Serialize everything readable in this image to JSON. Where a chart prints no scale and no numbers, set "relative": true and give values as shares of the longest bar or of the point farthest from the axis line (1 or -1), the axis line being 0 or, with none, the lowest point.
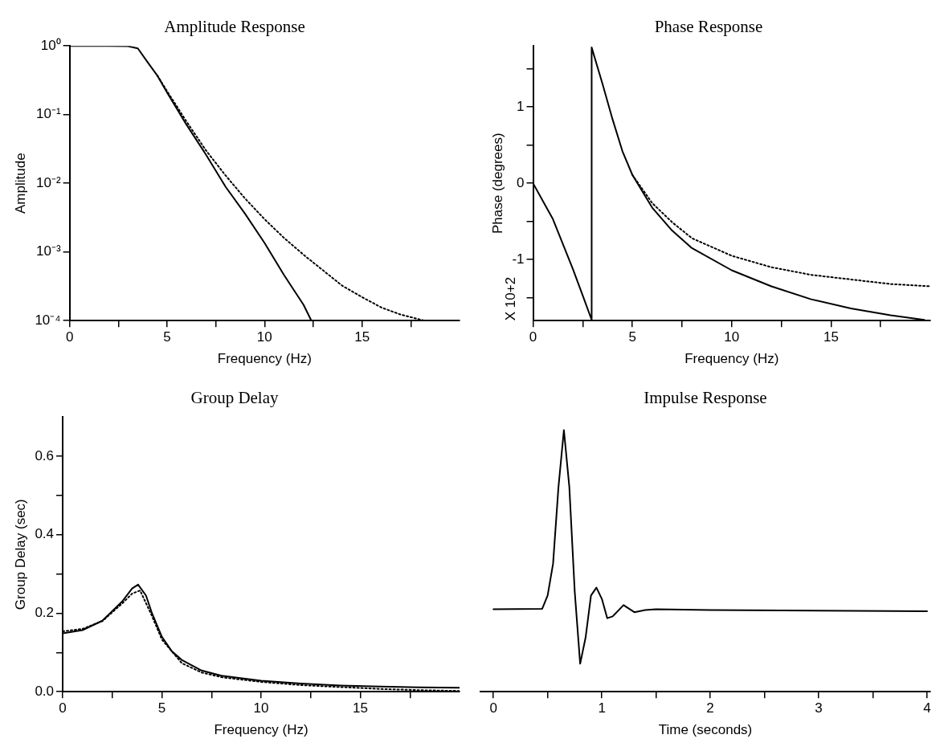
{
  "chart_data": [
    {
      "type": "line",
      "title": "Amplitude Response",
      "xlabel": "Frequency (Hz)",
      "ylabel": "Amplitude",
      "log": "y",
      "xlim": [
        0,
        20
      ],
      "xticks": [
        0,
        {
          "value": 2.5,
          "label": null
        },
        5,
        {
          "value": 7.5,
          "label": null
        },
        10,
        {
          "value": 12.5,
          "label": null
        },
        15,
        {
          "value": 17.5,
          "label": null
        }
      ],
      "ylim": [
        0.0001,
        1
      ],
      "yticks": [
        {
          "value": 0.0001,
          "label": "10⁻⁴"
        },
        {
          "value": 0.001,
          "label": "10⁻³"
        },
        {
          "value": 0.01,
          "label": "10⁻²"
        },
        {
          "value": 0.1,
          "label": "10⁻¹"
        },
        {
          "value": 1,
          "label": "10⁰"
        }
      ],
      "series": [
        {
          "color": "#000000",
          "line_style": "solid",
          "x": [
            0,
            2,
            3,
            3.5,
            4,
            4.5,
            5,
            6,
            7,
            8,
            9,
            10,
            11,
            12,
            12.4
          ],
          "values": [
            1,
            1,
            0.99,
            0.92,
            0.58,
            0.37,
            0.21,
            0.071,
            0.026,
            0.0089,
            0.0036,
            0.00135,
            0.00046,
            0.00017,
            0.0001
          ]
        },
        {
          "color": "#000000",
          "line_style": "dotted",
          "x": [
            4.5,
            5,
            6,
            7,
            8,
            9,
            10,
            11,
            12,
            13,
            14,
            15,
            16,
            17,
            18.2
          ],
          "values": [
            0.37,
            0.22,
            0.079,
            0.03,
            0.013,
            0.006,
            0.003,
            0.0016,
            0.00091,
            0.00054,
            0.00032,
            0.00022,
            0.000155,
            0.000122,
            0.0001
          ]
        }
      ]
    },
    {
      "type": "line",
      "title": "Phase Response",
      "xlabel": "Frequency (Hz)",
      "ylabel": "Phase (degrees)",
      "annotations": [
        "X 10+2"
      ],
      "xlim": [
        0,
        20
      ],
      "xticks": [
        0,
        {
          "value": 2.5,
          "label": null
        },
        5,
        {
          "value": 7.5,
          "label": null
        },
        10,
        {
          "value": 12.5,
          "label": null
        },
        15,
        {
          "value": 17.5,
          "label": null
        }
      ],
      "ylim": [
        -1.8,
        1.8
      ],
      "yticks": [
        {
          "value": -1.5,
          "label": null
        },
        -1,
        {
          "value": -0.5,
          "label": null
        },
        0,
        {
          "value": 0.5,
          "label": null
        },
        1,
        {
          "value": 1.5,
          "label": null
        }
      ],
      "series": [
        {
          "color": "#000000",
          "line_style": "solid",
          "x": [
            0,
            1,
            2,
            2.5,
            2.95,
            2.95,
            3.5,
            4,
            4.5,
            5,
            6,
            7,
            8,
            10,
            12,
            14,
            16,
            18,
            19.7
          ],
          "values": [
            0,
            -0.47,
            -1.12,
            -1.47,
            -1.79,
            1.78,
            1.3,
            0.84,
            0.42,
            0.11,
            -0.32,
            -0.62,
            -0.85,
            -1.14,
            -1.35,
            -1.52,
            -1.64,
            -1.73,
            -1.79
          ]
        },
        {
          "color": "#000000",
          "line_style": "dotted",
          "x": [
            5,
            6,
            7,
            8,
            10,
            12,
            14,
            16,
            18,
            20
          ],
          "values": [
            0.11,
            -0.26,
            -0.51,
            -0.72,
            -0.95,
            -1.1,
            -1.2,
            -1.26,
            -1.32,
            -1.35
          ]
        }
      ]
    },
    {
      "type": "line",
      "title": "Group Delay",
      "xlabel": "Frequency (Hz)",
      "ylabel": "Group Delay (sec)",
      "xlim": [
        0,
        20
      ],
      "xticks": [
        0,
        {
          "value": 2.5,
          "label": null
        },
        5,
        {
          "value": 7.5,
          "label": null
        },
        10,
        {
          "value": 12.5,
          "label": null
        },
        15,
        {
          "value": 17.5,
          "label": null
        }
      ],
      "ylim": [
        0,
        0.7
      ],
      "yticks": [
        {
          "value": 0,
          "label": "0.0"
        },
        {
          "value": 0.1,
          "label": null
        },
        0.2,
        {
          "value": 0.3,
          "label": null
        },
        0.4,
        {
          "value": 0.5,
          "label": null
        },
        0.6
      ],
      "series": [
        {
          "color": "#000000",
          "line_style": "solid",
          "x": [
            0,
            1,
            2,
            3,
            3.5,
            3.8,
            4.2,
            4.5,
            5,
            5.5,
            6,
            7,
            8,
            10,
            12,
            14,
            16,
            18,
            20
          ],
          "values": [
            0.149,
            0.157,
            0.181,
            0.23,
            0.263,
            0.273,
            0.245,
            0.2,
            0.14,
            0.103,
            0.081,
            0.054,
            0.041,
            0.028,
            0.021,
            0.016,
            0.013,
            0.011,
            0.01
          ]
        },
        {
          "color": "#000000",
          "line_style": "dotted",
          "x": [
            0,
            1,
            2,
            3,
            3.5,
            3.9,
            4.5,
            5,
            6,
            7,
            8,
            10,
            12,
            14,
            16,
            18,
            20
          ],
          "values": [
            0.154,
            0.16,
            0.18,
            0.225,
            0.25,
            0.258,
            0.193,
            0.133,
            0.073,
            0.049,
            0.037,
            0.025,
            0.017,
            0.012,
            0.007,
            0.004,
            0.002
          ]
        }
      ]
    },
    {
      "type": "line",
      "title": "Impulse Response",
      "xlabel": "Time (seconds)",
      "relative": true,
      "xlim": [
        -0.12,
        4.03
      ],
      "xticks": [
        0,
        {
          "value": 0.5,
          "label": null
        },
        1,
        {
          "value": 1.5,
          "label": null
        },
        2,
        {
          "value": 2.5,
          "label": null
        },
        3,
        {
          "value": 3.5,
          "label": null
        },
        4
      ],
      "series": [
        {
          "color": "#000000",
          "line_style": "solid",
          "x": [
            0,
            0.45,
            0.5,
            0.55,
            0.6,
            0.65,
            0.7,
            0.75,
            0.8,
            0.85,
            0.9,
            0.95,
            1,
            1.05,
            1.1,
            1.2,
            1.3,
            1.4,
            1.5,
            2,
            4
          ],
          "values": [
            0.315,
            0.317,
            0.368,
            0.489,
            0.783,
            1,
            0.783,
            0.382,
            0.107,
            0.207,
            0.368,
            0.398,
            0.355,
            0.281,
            0.288,
            0.331,
            0.304,
            0.312,
            0.315,
            0.312,
            0.308
          ]
        }
      ]
    }
  ]
}
